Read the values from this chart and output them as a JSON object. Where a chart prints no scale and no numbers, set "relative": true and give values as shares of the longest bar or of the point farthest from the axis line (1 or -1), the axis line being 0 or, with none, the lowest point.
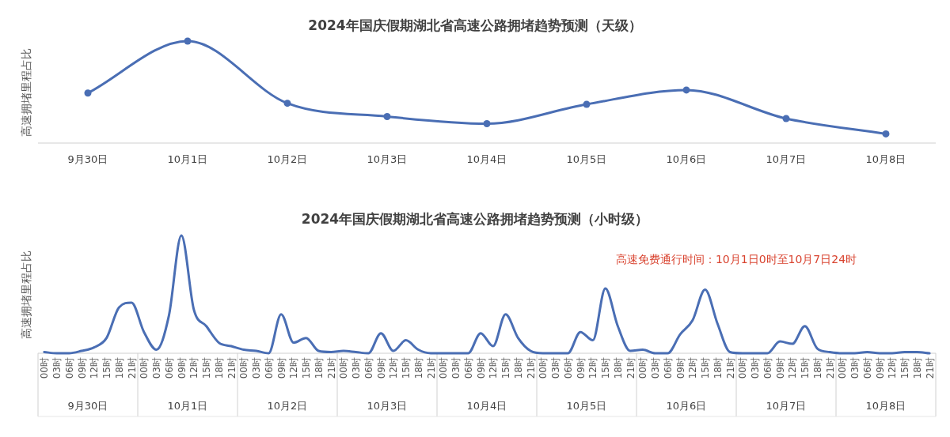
{
  "chart_data": [
    {
      "type": "line",
      "title": "2024年国庆假期湖北省高速公路拥堵趋势预测（天级）",
      "ylabel": "高速拥堵里程占比",
      "relative": true,
      "marker": "circle",
      "color": "#4a6eb4",
      "categories": [
        "9月30日",
        "10月1日",
        "10月2日",
        "10月3日",
        "10月4日",
        "10月5日",
        "10月6日",
        "10月7日",
        "10月8日"
      ],
      "values": [
        0.49,
        1,
        0.39,
        0.26,
        0.19,
        0.38,
        0.52,
        0.24,
        0.09
      ]
    },
    {
      "type": "line",
      "title": "2024年国庆假期湖北省高速公路拥堵趋势预测（小时级）",
      "ylabel": "高速拥堵里程占比",
      "relative": true,
      "marker": "none",
      "color": "#4a6eb4",
      "annotations": [
        "高速免费通行时间：10月1日0时至10月7日24时",
        "9月30日",
        "10月1日",
        "10月2日",
        "10月3日",
        "10月4日",
        "10月5日",
        "10月6日",
        "10月7日",
        "10月8日"
      ],
      "categories": [
        "00时",
        "03时",
        "06时",
        "09时",
        "12时",
        "15时",
        "18时",
        "21时",
        "00时",
        "03时",
        "06时",
        "09时",
        "12时",
        "15时",
        "18时",
        "21时",
        "00时",
        "03时",
        "06时",
        "09时",
        "12时",
        "15时",
        "18时",
        "21时",
        "00时",
        "03时",
        "06时",
        "09时",
        "12时",
        "15时",
        "18时",
        "21时",
        "00时",
        "03时",
        "06时",
        "09时",
        "12时",
        "15时",
        "18时",
        "21时",
        "00时",
        "03时",
        "06时",
        "09时",
        "12时",
        "15时",
        "18时",
        "21时",
        "00时",
        "03时",
        "06时",
        "09时",
        "12时",
        "15时",
        "18时",
        "21时",
        "00时",
        "03时",
        "06时",
        "09时",
        "12时",
        "15时",
        "18时",
        "21时",
        "00时",
        "03时",
        "06时",
        "09时",
        "12时",
        "15时",
        "18时",
        "21时"
      ],
      "values": [
        0.01,
        0,
        0,
        0.02,
        0.05,
        0.13,
        0.39,
        0.43,
        0.18,
        0.03,
        0.32,
        1,
        0.37,
        0.23,
        0.09,
        0.06,
        0.03,
        0.02,
        0,
        0.33,
        0.09,
        0.13,
        0.02,
        0.01,
        0.02,
        0.01,
        0,
        0.17,
        0.02,
        0.11,
        0.03,
        0,
        0,
        0,
        0,
        0.17,
        0.06,
        0.33,
        0.13,
        0.02,
        0,
        0,
        0,
        0.18,
        0.11,
        0.55,
        0.23,
        0.02,
        0.03,
        0,
        0,
        0.16,
        0.28,
        0.54,
        0.25,
        0.01,
        0,
        0,
        0,
        0.1,
        0.08,
        0.23,
        0.04,
        0.01,
        0,
        0,
        0.01,
        0,
        0,
        0.01,
        0.01,
        0
      ]
    }
  ]
}
